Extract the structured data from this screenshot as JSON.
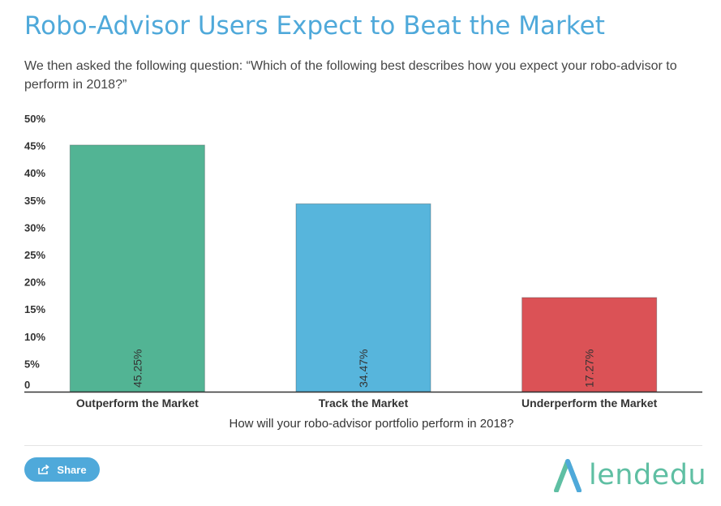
{
  "header": {
    "title": "Robo-Advisor Users Expect to Beat the Market",
    "subtitle": "We then asked the following question: “Which of the following best describes how you expect your robo-advisor to perform in 2018?”"
  },
  "chart_data": {
    "type": "bar",
    "categories": [
      "Outperform the Market",
      "Track the Market",
      "Underperform the Market"
    ],
    "values": [
      45.25,
      34.47,
      17.27
    ],
    "data_labels": [
      "45.25%",
      "34.47%",
      "17.27%"
    ],
    "colors": [
      "#52b494",
      "#57b5dc",
      "#db5256"
    ],
    "xlabel": "How will your robo-advisor portfolio perform in 2018?",
    "ylabel": "",
    "ylim": [
      0,
      50
    ],
    "yticks": [
      0,
      5,
      10,
      15,
      20,
      25,
      30,
      35,
      40,
      45,
      50
    ],
    "ytick_labels": [
      "0",
      "5%",
      "10%",
      "15%",
      "20%",
      "25%",
      "30%",
      "35%",
      "40%",
      "45%",
      "50%"
    ],
    "grid": false,
    "legend": "none"
  },
  "footer": {
    "share_label": "Share",
    "share_icon": "share-icon",
    "logo_text": "lendedu",
    "logo_color": "#5fbfa3",
    "accent_color": "#4fa9da"
  }
}
